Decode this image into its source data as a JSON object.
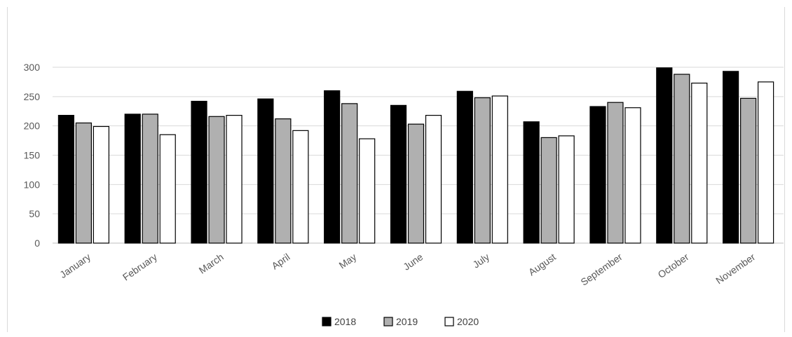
{
  "chart_data": {
    "type": "bar",
    "title": "",
    "xlabel": "",
    "ylabel": "",
    "ylim": [
      0,
      300
    ],
    "yticks": [
      0,
      50,
      100,
      150,
      200,
      250,
      300
    ],
    "grid": true,
    "legend_position": "bottom",
    "categories": [
      "January",
      "February",
      "March",
      "April",
      "May",
      "June",
      "July",
      "August",
      "September",
      "October",
      "November"
    ],
    "series": [
      {
        "name": "2018",
        "color": "#000000",
        "values": [
          218,
          220,
          242,
          246,
          260,
          235,
          259,
          207,
          233,
          299,
          293
        ]
      },
      {
        "name": "2019",
        "color": "#b0b0b0",
        "values": [
          205,
          220,
          216,
          212,
          238,
          203,
          248,
          180,
          240,
          288,
          247
        ]
      },
      {
        "name": "2020",
        "color": "#ffffff",
        "values": [
          199,
          185,
          218,
          192,
          178,
          218,
          251,
          183,
          231,
          273,
          275
        ]
      }
    ]
  }
}
